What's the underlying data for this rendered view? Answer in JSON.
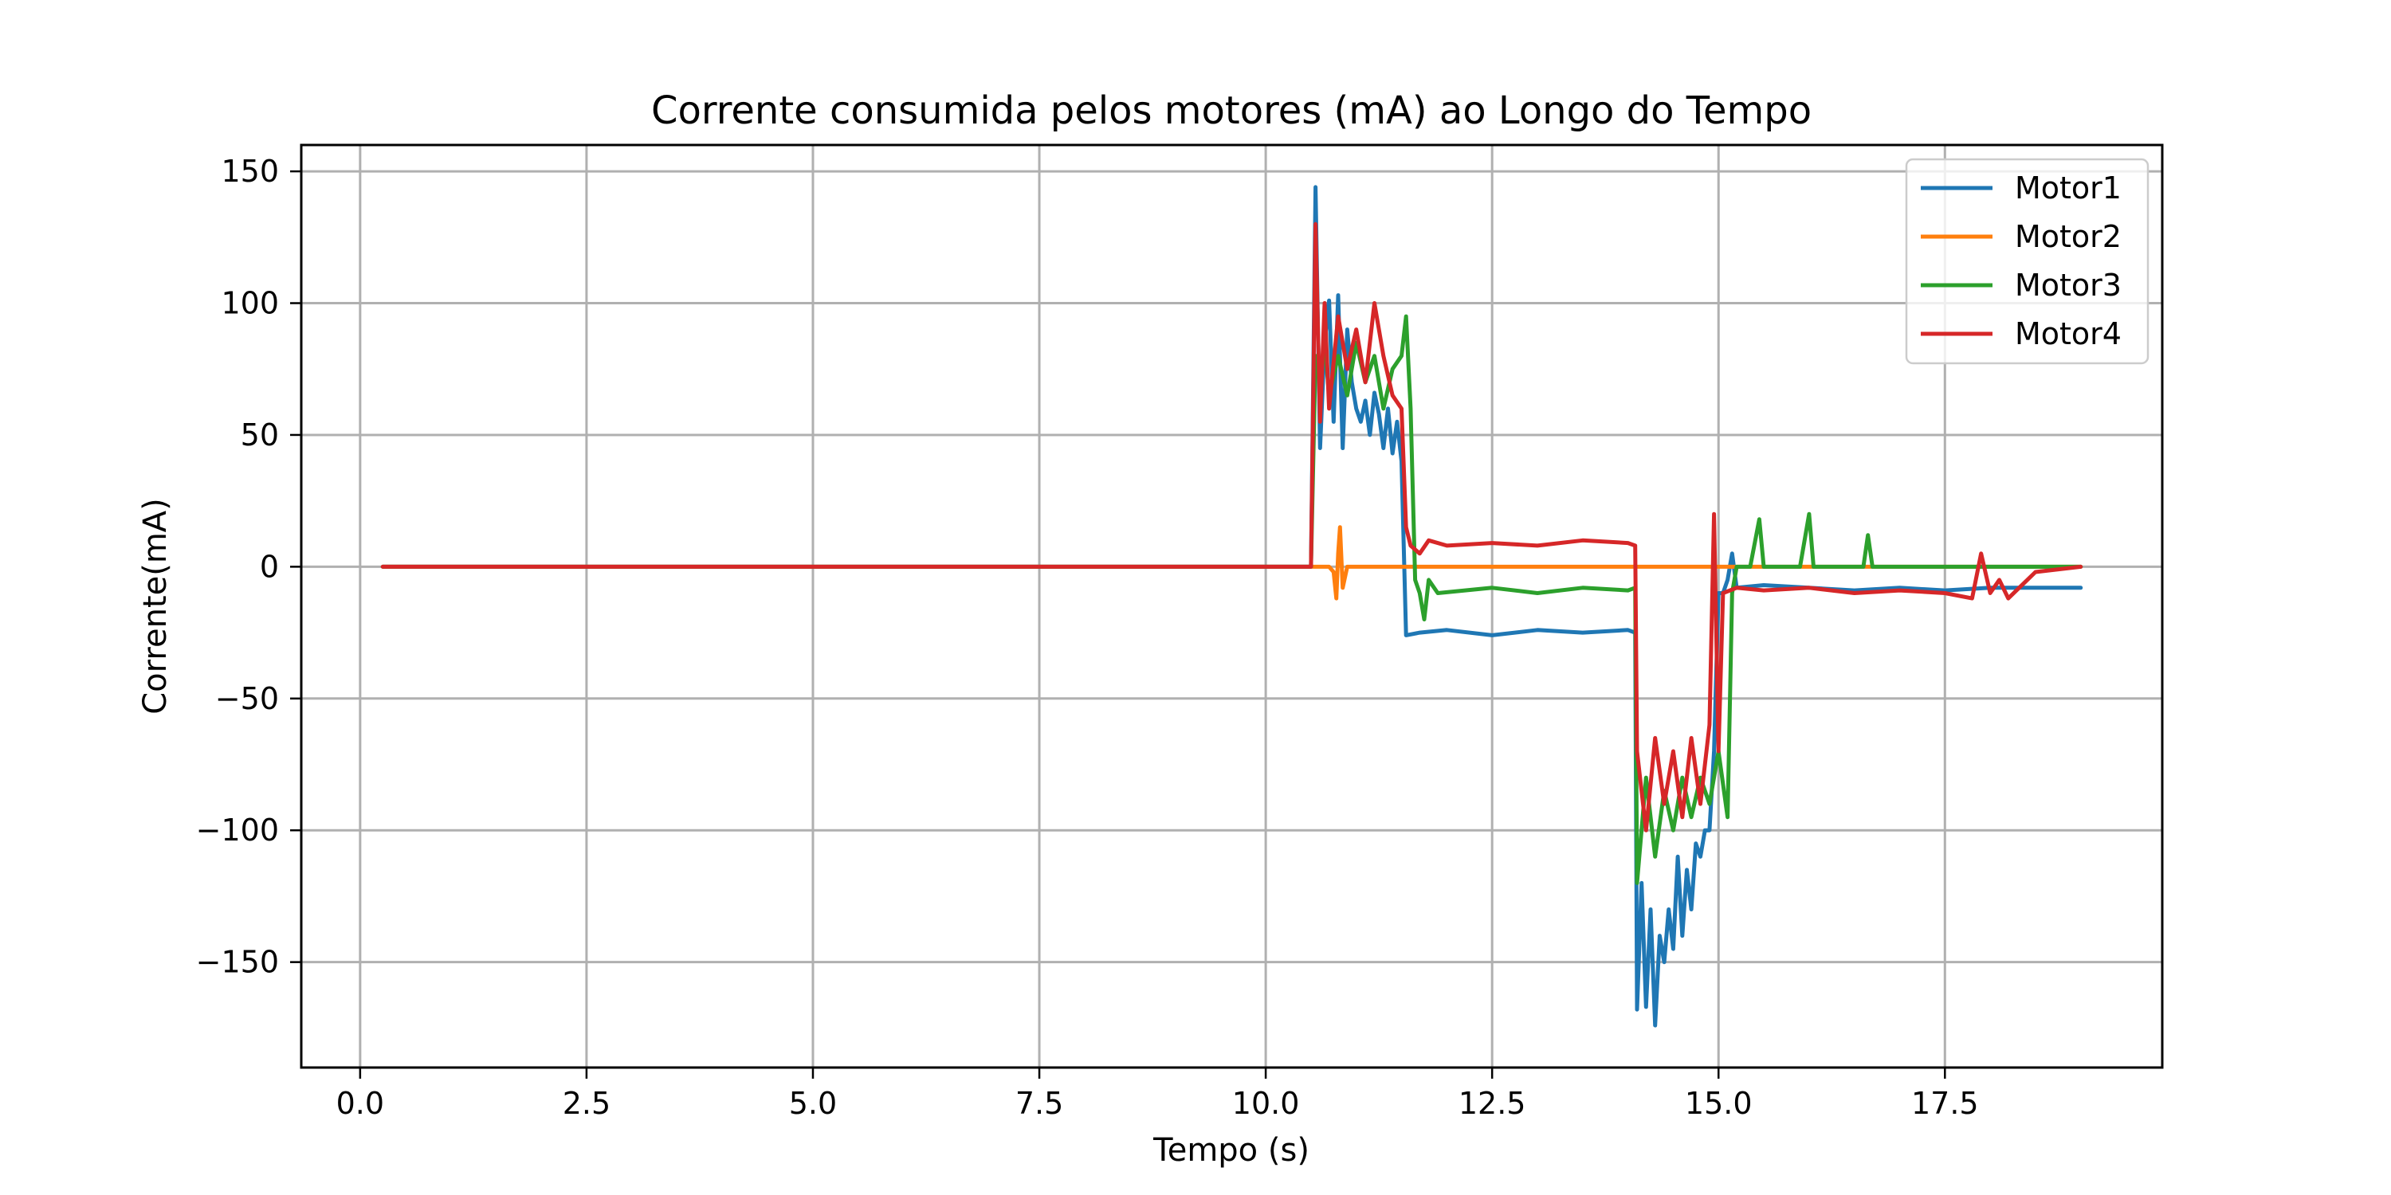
{
  "chart_data": {
    "type": "line",
    "title": "Corrente consumida pelos motores (mA) ao Longo do Tempo",
    "xlabel": "Tempo (s)",
    "ylabel": "Corrente(mA)",
    "xlim": [
      -0.65,
      19.9
    ],
    "ylim": [
      -190,
      160
    ],
    "x_ticks": [
      0.0,
      2.5,
      5.0,
      7.5,
      10.0,
      12.5,
      15.0,
      17.5
    ],
    "x_tick_labels": [
      "0.0",
      "2.5",
      "5.0",
      "7.5",
      "10.0",
      "12.5",
      "15.0",
      "17.5"
    ],
    "y_ticks": [
      150,
      100,
      50,
      0,
      -50,
      -100,
      -150
    ],
    "y_tick_labels": [
      "150",
      "100",
      "50",
      "0",
      "−50",
      "−100",
      "−150"
    ],
    "grid": true,
    "legend_position": "top-right",
    "series": [
      {
        "name": "Motor1",
        "color": "#1f77b4",
        "points": [
          [
            0.25,
            0
          ],
          [
            10.5,
            0
          ],
          [
            10.55,
            144
          ],
          [
            10.6,
            45
          ],
          [
            10.65,
            85
          ],
          [
            10.7,
            101
          ],
          [
            10.75,
            55
          ],
          [
            10.8,
            103
          ],
          [
            10.85,
            45
          ],
          [
            10.9,
            90
          ],
          [
            10.95,
            70
          ],
          [
            11.0,
            60
          ],
          [
            11.05,
            55
          ],
          [
            11.1,
            63
          ],
          [
            11.15,
            50
          ],
          [
            11.2,
            66
          ],
          [
            11.25,
            58
          ],
          [
            11.3,
            45
          ],
          [
            11.35,
            60
          ],
          [
            11.4,
            43
          ],
          [
            11.45,
            55
          ],
          [
            11.5,
            40
          ],
          [
            11.55,
            -26
          ],
          [
            11.7,
            -25
          ],
          [
            12.0,
            -24
          ],
          [
            12.5,
            -26
          ],
          [
            13.0,
            -24
          ],
          [
            13.5,
            -25
          ],
          [
            14.0,
            -24
          ],
          [
            14.08,
            -25
          ],
          [
            14.1,
            -168
          ],
          [
            14.15,
            -120
          ],
          [
            14.2,
            -167
          ],
          [
            14.25,
            -130
          ],
          [
            14.3,
            -174
          ],
          [
            14.35,
            -140
          ],
          [
            14.4,
            -150
          ],
          [
            14.45,
            -130
          ],
          [
            14.5,
            -145
          ],
          [
            14.55,
            -110
          ],
          [
            14.6,
            -140
          ],
          [
            14.65,
            -115
          ],
          [
            14.7,
            -130
          ],
          [
            14.75,
            -105
          ],
          [
            14.8,
            -110
          ],
          [
            14.85,
            -100
          ],
          [
            14.9,
            -100
          ],
          [
            14.95,
            -70
          ],
          [
            15.0,
            -10
          ],
          [
            15.05,
            -10
          ],
          [
            15.1,
            -5
          ],
          [
            15.15,
            5
          ],
          [
            15.2,
            -8
          ],
          [
            15.5,
            -7
          ],
          [
            16.0,
            -8
          ],
          [
            16.5,
            -9
          ],
          [
            17.0,
            -8
          ],
          [
            17.5,
            -9
          ],
          [
            18.0,
            -8
          ],
          [
            18.5,
            -8
          ],
          [
            19.0,
            -8
          ]
        ]
      },
      {
        "name": "Motor2",
        "color": "#ff7f0e",
        "points": [
          [
            0.25,
            0
          ],
          [
            10.7,
            0
          ],
          [
            10.75,
            -2
          ],
          [
            10.78,
            -12
          ],
          [
            10.8,
            5
          ],
          [
            10.82,
            15
          ],
          [
            10.85,
            -8
          ],
          [
            10.9,
            0
          ],
          [
            19.0,
            0
          ]
        ]
      },
      {
        "name": "Motor3",
        "color": "#2ca02c",
        "points": [
          [
            0.25,
            0
          ],
          [
            10.5,
            0
          ],
          [
            10.55,
            80
          ],
          [
            10.6,
            70
          ],
          [
            10.65,
            85
          ],
          [
            10.7,
            65
          ],
          [
            10.8,
            80
          ],
          [
            10.9,
            65
          ],
          [
            11.0,
            85
          ],
          [
            11.1,
            70
          ],
          [
            11.2,
            80
          ],
          [
            11.3,
            60
          ],
          [
            11.4,
            75
          ],
          [
            11.5,
            80
          ],
          [
            11.55,
            95
          ],
          [
            11.6,
            60
          ],
          [
            11.65,
            -5
          ],
          [
            11.7,
            -10
          ],
          [
            11.75,
            -20
          ],
          [
            11.8,
            -5
          ],
          [
            11.9,
            -10
          ],
          [
            12.5,
            -8
          ],
          [
            13.0,
            -10
          ],
          [
            13.5,
            -8
          ],
          [
            14.0,
            -9
          ],
          [
            14.08,
            -8
          ],
          [
            14.1,
            -120
          ],
          [
            14.2,
            -80
          ],
          [
            14.3,
            -110
          ],
          [
            14.4,
            -85
          ],
          [
            14.5,
            -100
          ],
          [
            14.6,
            -80
          ],
          [
            14.7,
            -95
          ],
          [
            14.8,
            -80
          ],
          [
            14.9,
            -90
          ],
          [
            15.0,
            -70
          ],
          [
            15.1,
            -95
          ],
          [
            15.15,
            -10
          ],
          [
            15.2,
            0
          ],
          [
            15.35,
            0
          ],
          [
            15.45,
            18
          ],
          [
            15.5,
            0
          ],
          [
            15.9,
            0
          ],
          [
            16.0,
            20
          ],
          [
            16.05,
            0
          ],
          [
            16.6,
            0
          ],
          [
            16.65,
            12
          ],
          [
            16.7,
            0
          ],
          [
            19.0,
            0
          ]
        ]
      },
      {
        "name": "Motor4",
        "color": "#d62728",
        "points": [
          [
            0.25,
            0
          ],
          [
            10.5,
            0
          ],
          [
            10.55,
            130
          ],
          [
            10.6,
            55
          ],
          [
            10.65,
            100
          ],
          [
            10.7,
            60
          ],
          [
            10.8,
            95
          ],
          [
            10.9,
            75
          ],
          [
            11.0,
            90
          ],
          [
            11.1,
            70
          ],
          [
            11.2,
            100
          ],
          [
            11.3,
            80
          ],
          [
            11.4,
            65
          ],
          [
            11.5,
            60
          ],
          [
            11.55,
            15
          ],
          [
            11.6,
            8
          ],
          [
            11.7,
            5
          ],
          [
            11.8,
            10
          ],
          [
            12.0,
            8
          ],
          [
            12.5,
            9
          ],
          [
            13.0,
            8
          ],
          [
            13.5,
            10
          ],
          [
            14.0,
            9
          ],
          [
            14.08,
            8
          ],
          [
            14.1,
            -70
          ],
          [
            14.2,
            -100
          ],
          [
            14.3,
            -65
          ],
          [
            14.4,
            -90
          ],
          [
            14.5,
            -70
          ],
          [
            14.6,
            -95
          ],
          [
            14.7,
            -65
          ],
          [
            14.8,
            -90
          ],
          [
            14.85,
            -75
          ],
          [
            14.9,
            -60
          ],
          [
            14.95,
            20
          ],
          [
            15.0,
            -70
          ],
          [
            15.05,
            -10
          ],
          [
            15.2,
            -8
          ],
          [
            15.5,
            -9
          ],
          [
            16.0,
            -8
          ],
          [
            16.5,
            -10
          ],
          [
            17.0,
            -9
          ],
          [
            17.5,
            -10
          ],
          [
            17.8,
            -12
          ],
          [
            17.9,
            5
          ],
          [
            18.0,
            -10
          ],
          [
            18.1,
            -5
          ],
          [
            18.2,
            -12
          ],
          [
            18.5,
            -2
          ],
          [
            19.0,
            0
          ]
        ]
      }
    ]
  }
}
